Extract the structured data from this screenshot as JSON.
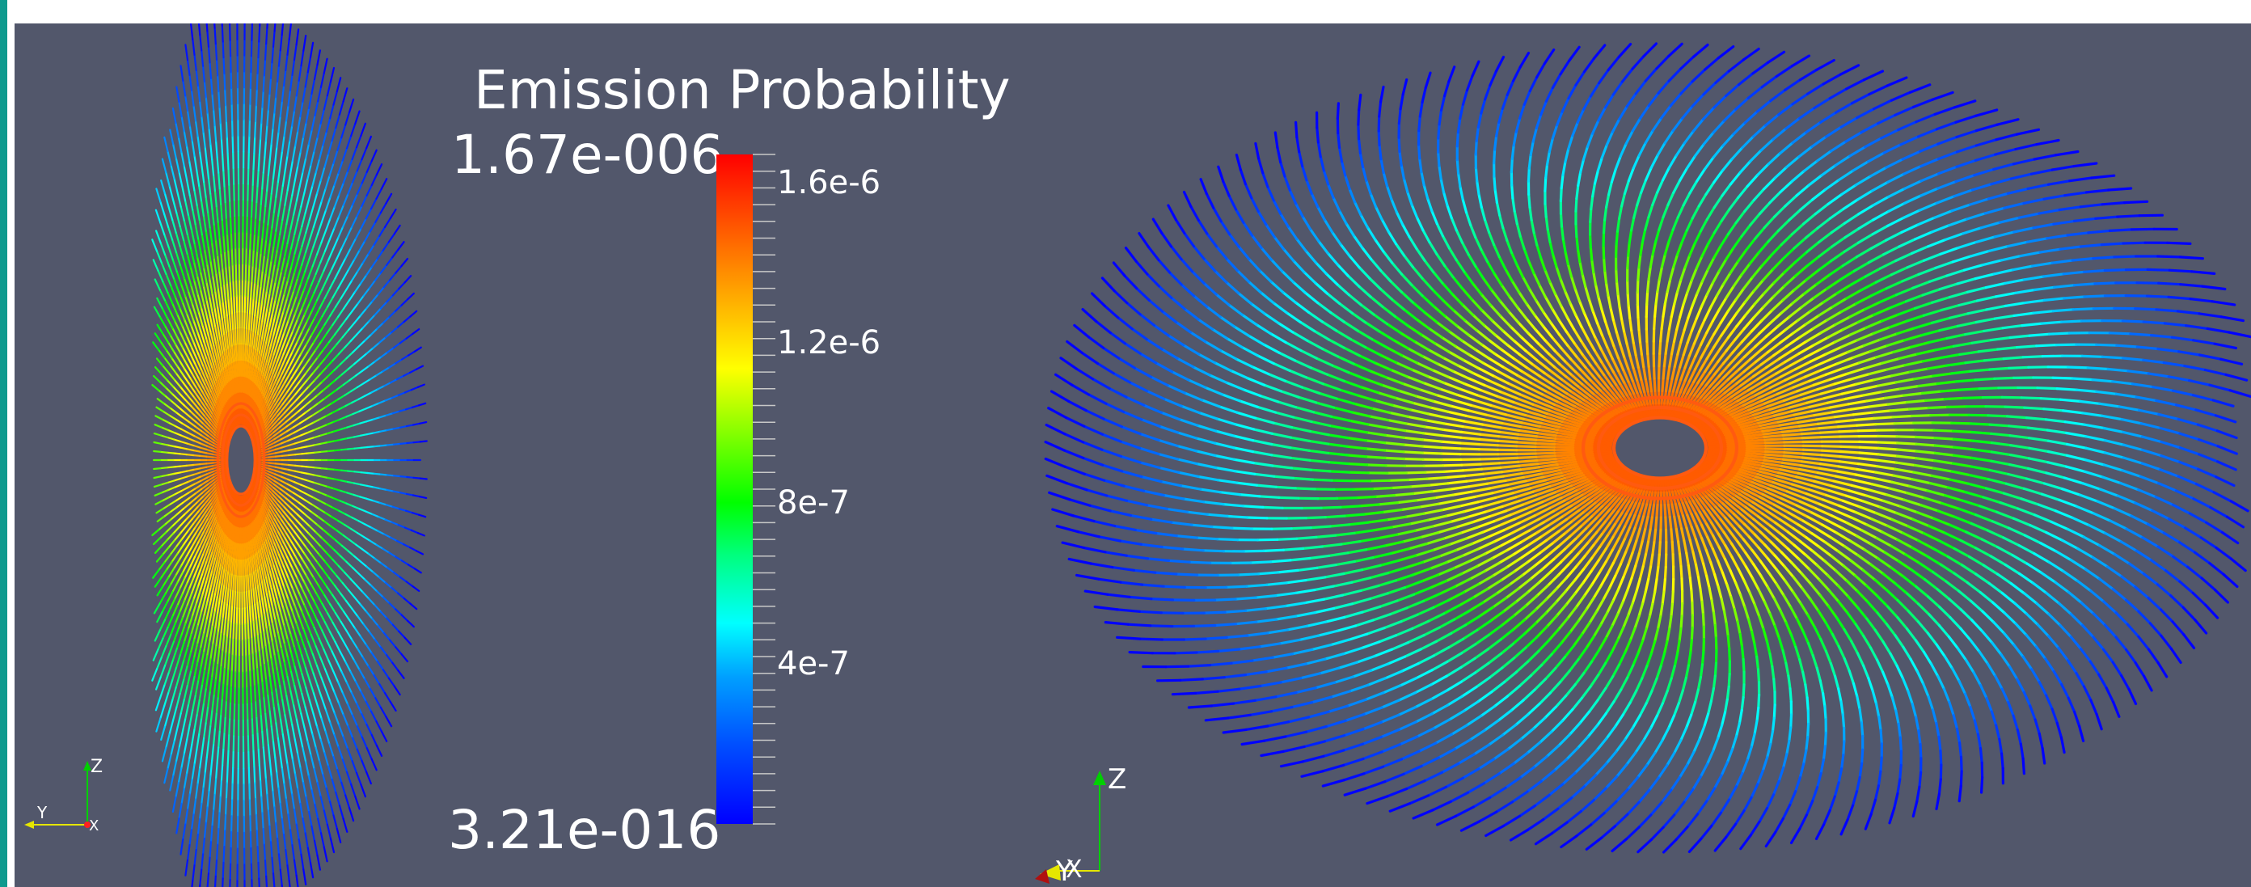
{
  "window": {
    "accent": "#0f9a8e",
    "background": "#52576b"
  },
  "legend": {
    "title": "Emission Probability",
    "max_label": "1.67e-006",
    "min_label": "3.21e-016",
    "ticks": [
      {
        "label": "1.6e-6",
        "value": 1.6e-06
      },
      {
        "label": "1.2e-6",
        "value": 1.2e-06
      },
      {
        "label": "8e-7",
        "value": 8e-07
      },
      {
        "label": "4e-7",
        "value": 4e-07
      }
    ],
    "range": [
      3.21e-16,
      1.67e-06
    ],
    "colors": [
      "#0000ff",
      "#00a0ff",
      "#00ffff",
      "#00ff00",
      "#ffff00",
      "#ffa000",
      "#ff0000"
    ]
  },
  "left_axes": {
    "z": "Z",
    "y": "Y",
    "x": "X"
  },
  "right_axes": {
    "z": "Z",
    "y": "Y",
    "x": "X"
  }
}
